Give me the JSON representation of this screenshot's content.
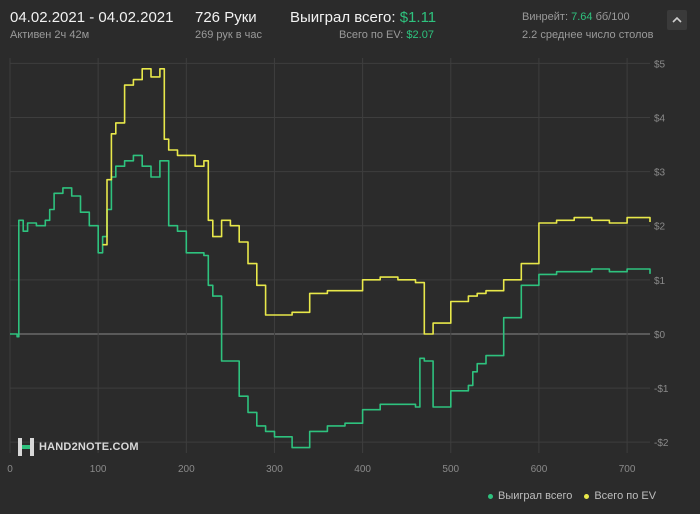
{
  "header": {
    "date_range": "04.02.2021 - 04.02.2021",
    "active_time": "Активен 2ч 42м",
    "hands": "726 Руки",
    "hands_per_hour": "269 рук в час",
    "won_label": "Выиграл всего:",
    "won_value": "$1.11",
    "ev_label": "Всего по EV:",
    "ev_value": "$2.07",
    "winrate_label": "Винрейт:",
    "winrate_value": "7.64",
    "winrate_scale": "бб/100",
    "avg_tables": "2.2 среднее число столов"
  },
  "logo": {
    "text": "HAND2NOTE.COM"
  },
  "colors": {
    "won": "#2ec27e",
    "ev": "#e8e84a",
    "background": "#2b2b2b",
    "grid": "#3e3e3e"
  },
  "chart_data": {
    "type": "line",
    "title": "",
    "xlabel": "",
    "ylabel": "",
    "xlim": [
      0,
      726
    ],
    "ylim": [
      -2.2,
      5.1
    ],
    "x_ticks": [
      0,
      100,
      200,
      300,
      400,
      500,
      600,
      700
    ],
    "y_ticks": [
      5,
      4,
      3,
      2,
      1,
      0,
      -1,
      -2
    ],
    "y_tick_labels": [
      "$5",
      "$4",
      "$3",
      "$2",
      "$1",
      "$0",
      "-$1",
      "-$2"
    ],
    "grid": true,
    "legend_position": "bottom-right",
    "series": [
      {
        "name": "Выиграл всего",
        "color": "#2ec27e",
        "x": [
          0,
          8,
          10,
          15,
          20,
          30,
          40,
          45,
          50,
          60,
          70,
          80,
          90,
          100,
          105,
          110,
          115,
          120,
          130,
          140,
          150,
          160,
          170,
          180,
          190,
          200,
          210,
          220,
          225,
          230,
          240,
          250,
          260,
          270,
          280,
          290,
          300,
          320,
          340,
          360,
          380,
          400,
          420,
          440,
          460,
          465,
          470,
          480,
          500,
          520,
          525,
          530,
          540,
          560,
          580,
          600,
          620,
          640,
          660,
          680,
          700,
          726
        ],
        "y": [
          0,
          -0.05,
          2.1,
          1.9,
          2.05,
          2.0,
          2.1,
          2.3,
          2.6,
          2.7,
          2.55,
          2.25,
          2.0,
          1.5,
          1.8,
          2.3,
          2.9,
          3.1,
          3.2,
          3.3,
          3.1,
          2.9,
          3.2,
          2.0,
          1.9,
          1.5,
          1.5,
          1.45,
          0.9,
          0.7,
          -0.5,
          -0.5,
          -1.15,
          -1.45,
          -1.7,
          -1.8,
          -1.9,
          -2.1,
          -1.8,
          -1.7,
          -1.65,
          -1.4,
          -1.3,
          -1.3,
          -1.35,
          -0.45,
          -0.5,
          -1.35,
          -1.05,
          -0.95,
          -0.7,
          -0.55,
          -0.4,
          0.3,
          0.9,
          1.1,
          1.15,
          1.15,
          1.2,
          1.15,
          1.2,
          1.11
        ]
      },
      {
        "name": "Всего по EV",
        "color": "#e8e84a",
        "x": [
          105,
          110,
          115,
          120,
          130,
          140,
          150,
          160,
          170,
          175,
          180,
          190,
          200,
          210,
          220,
          225,
          230,
          240,
          250,
          260,
          270,
          280,
          290,
          300,
          320,
          340,
          360,
          380,
          400,
          420,
          440,
          460,
          470,
          480,
          500,
          520,
          530,
          540,
          560,
          580,
          600,
          620,
          640,
          660,
          680,
          700,
          726
        ],
        "y": [
          1.65,
          2.85,
          3.7,
          3.9,
          4.6,
          4.7,
          4.9,
          4.75,
          4.9,
          3.6,
          3.4,
          3.3,
          3.3,
          3.1,
          3.2,
          2.1,
          1.8,
          2.1,
          2.0,
          1.7,
          1.3,
          0.9,
          0.35,
          0.35,
          0.4,
          0.75,
          0.8,
          0.8,
          1.0,
          1.05,
          1.0,
          0.95,
          0.0,
          0.2,
          0.6,
          0.7,
          0.75,
          0.8,
          1.0,
          1.3,
          2.05,
          2.1,
          2.15,
          2.1,
          2.05,
          2.15,
          2.07
        ]
      }
    ]
  }
}
